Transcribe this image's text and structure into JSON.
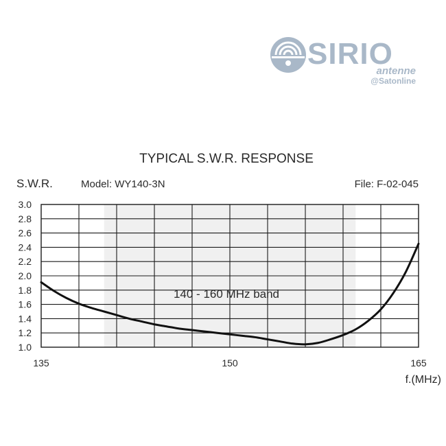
{
  "brand": {
    "name": "SIRIO",
    "sub": "antenne",
    "credit": "@Satonline",
    "color": "#a9b8c8"
  },
  "chart_data": {
    "type": "line",
    "title": "TYPICAL S.W.R. RESPONSE",
    "ylabel": "S.W.R.",
    "xlabel": "f.(MHz)",
    "model": "Model:  WY140-3N",
    "file": "File:  F-02-045",
    "band_label": "140 - 160 MHz band",
    "band_range": [
      140,
      160
    ],
    "xlim": [
      135,
      165
    ],
    "ylim": [
      1.0,
      3.0
    ],
    "x_ticks": [
      "135",
      "150",
      "165"
    ],
    "x_tick_values": [
      135,
      150,
      165
    ],
    "y_ticks": [
      "3.0",
      "2.8",
      "2.6",
      "2.4",
      "2.2",
      "2.0",
      "1.8",
      "1.6",
      "1.4",
      "1.2",
      "1.0"
    ],
    "y_tick_values": [
      3.0,
      2.8,
      2.6,
      2.4,
      2.2,
      2.0,
      1.8,
      1.6,
      1.4,
      1.2,
      1.0
    ],
    "grid": true,
    "series": [
      {
        "x": [
          135,
          136,
          137,
          138,
          139,
          140,
          141,
          142,
          143,
          144,
          145,
          146,
          147,
          148,
          149,
          150,
          151,
          152,
          153,
          154,
          155,
          156,
          157,
          158,
          159,
          160,
          161,
          162,
          163,
          164,
          165
        ],
        "y": [
          1.91,
          1.79,
          1.69,
          1.61,
          1.55,
          1.5,
          1.45,
          1.4,
          1.36,
          1.32,
          1.29,
          1.26,
          1.24,
          1.22,
          1.2,
          1.18,
          1.16,
          1.14,
          1.11,
          1.08,
          1.05,
          1.04,
          1.06,
          1.11,
          1.17,
          1.25,
          1.37,
          1.53,
          1.76,
          2.06,
          2.45
        ]
      }
    ]
  }
}
